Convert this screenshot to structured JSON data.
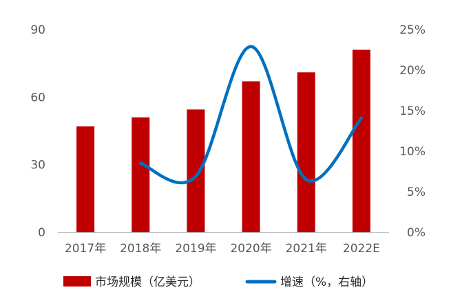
{
  "chart_data": {
    "type": "bar",
    "categories": [
      "2017年",
      "2018年",
      "2019年",
      "2020年",
      "2021年",
      "2022E"
    ],
    "series": [
      {
        "name": "市场规模（亿美元）",
        "type": "bar",
        "axis": "left",
        "color": "#C00000",
        "values": [
          47,
          51,
          54.5,
          67,
          71,
          81
        ]
      },
      {
        "name": "增速（%，右轴）",
        "type": "line",
        "axis": "right",
        "smooth": true,
        "color": "#0070C0",
        "values": [
          null,
          8.5,
          6.9,
          22.9,
          6.5,
          14.1
        ]
      }
    ],
    "y_left": {
      "range": [
        0,
        90
      ],
      "ticks": [
        "0",
        "30",
        "60",
        "90"
      ],
      "tick_values": [
        0,
        30,
        60,
        90
      ]
    },
    "y_right": {
      "range": [
        0,
        25
      ],
      "ticks": [
        "0%",
        "5%",
        "10%",
        "15%",
        "20%",
        "25%"
      ],
      "tick_values": [
        0,
        5,
        10,
        15,
        20,
        25
      ]
    },
    "grid": false,
    "legend_position": "bottom"
  }
}
